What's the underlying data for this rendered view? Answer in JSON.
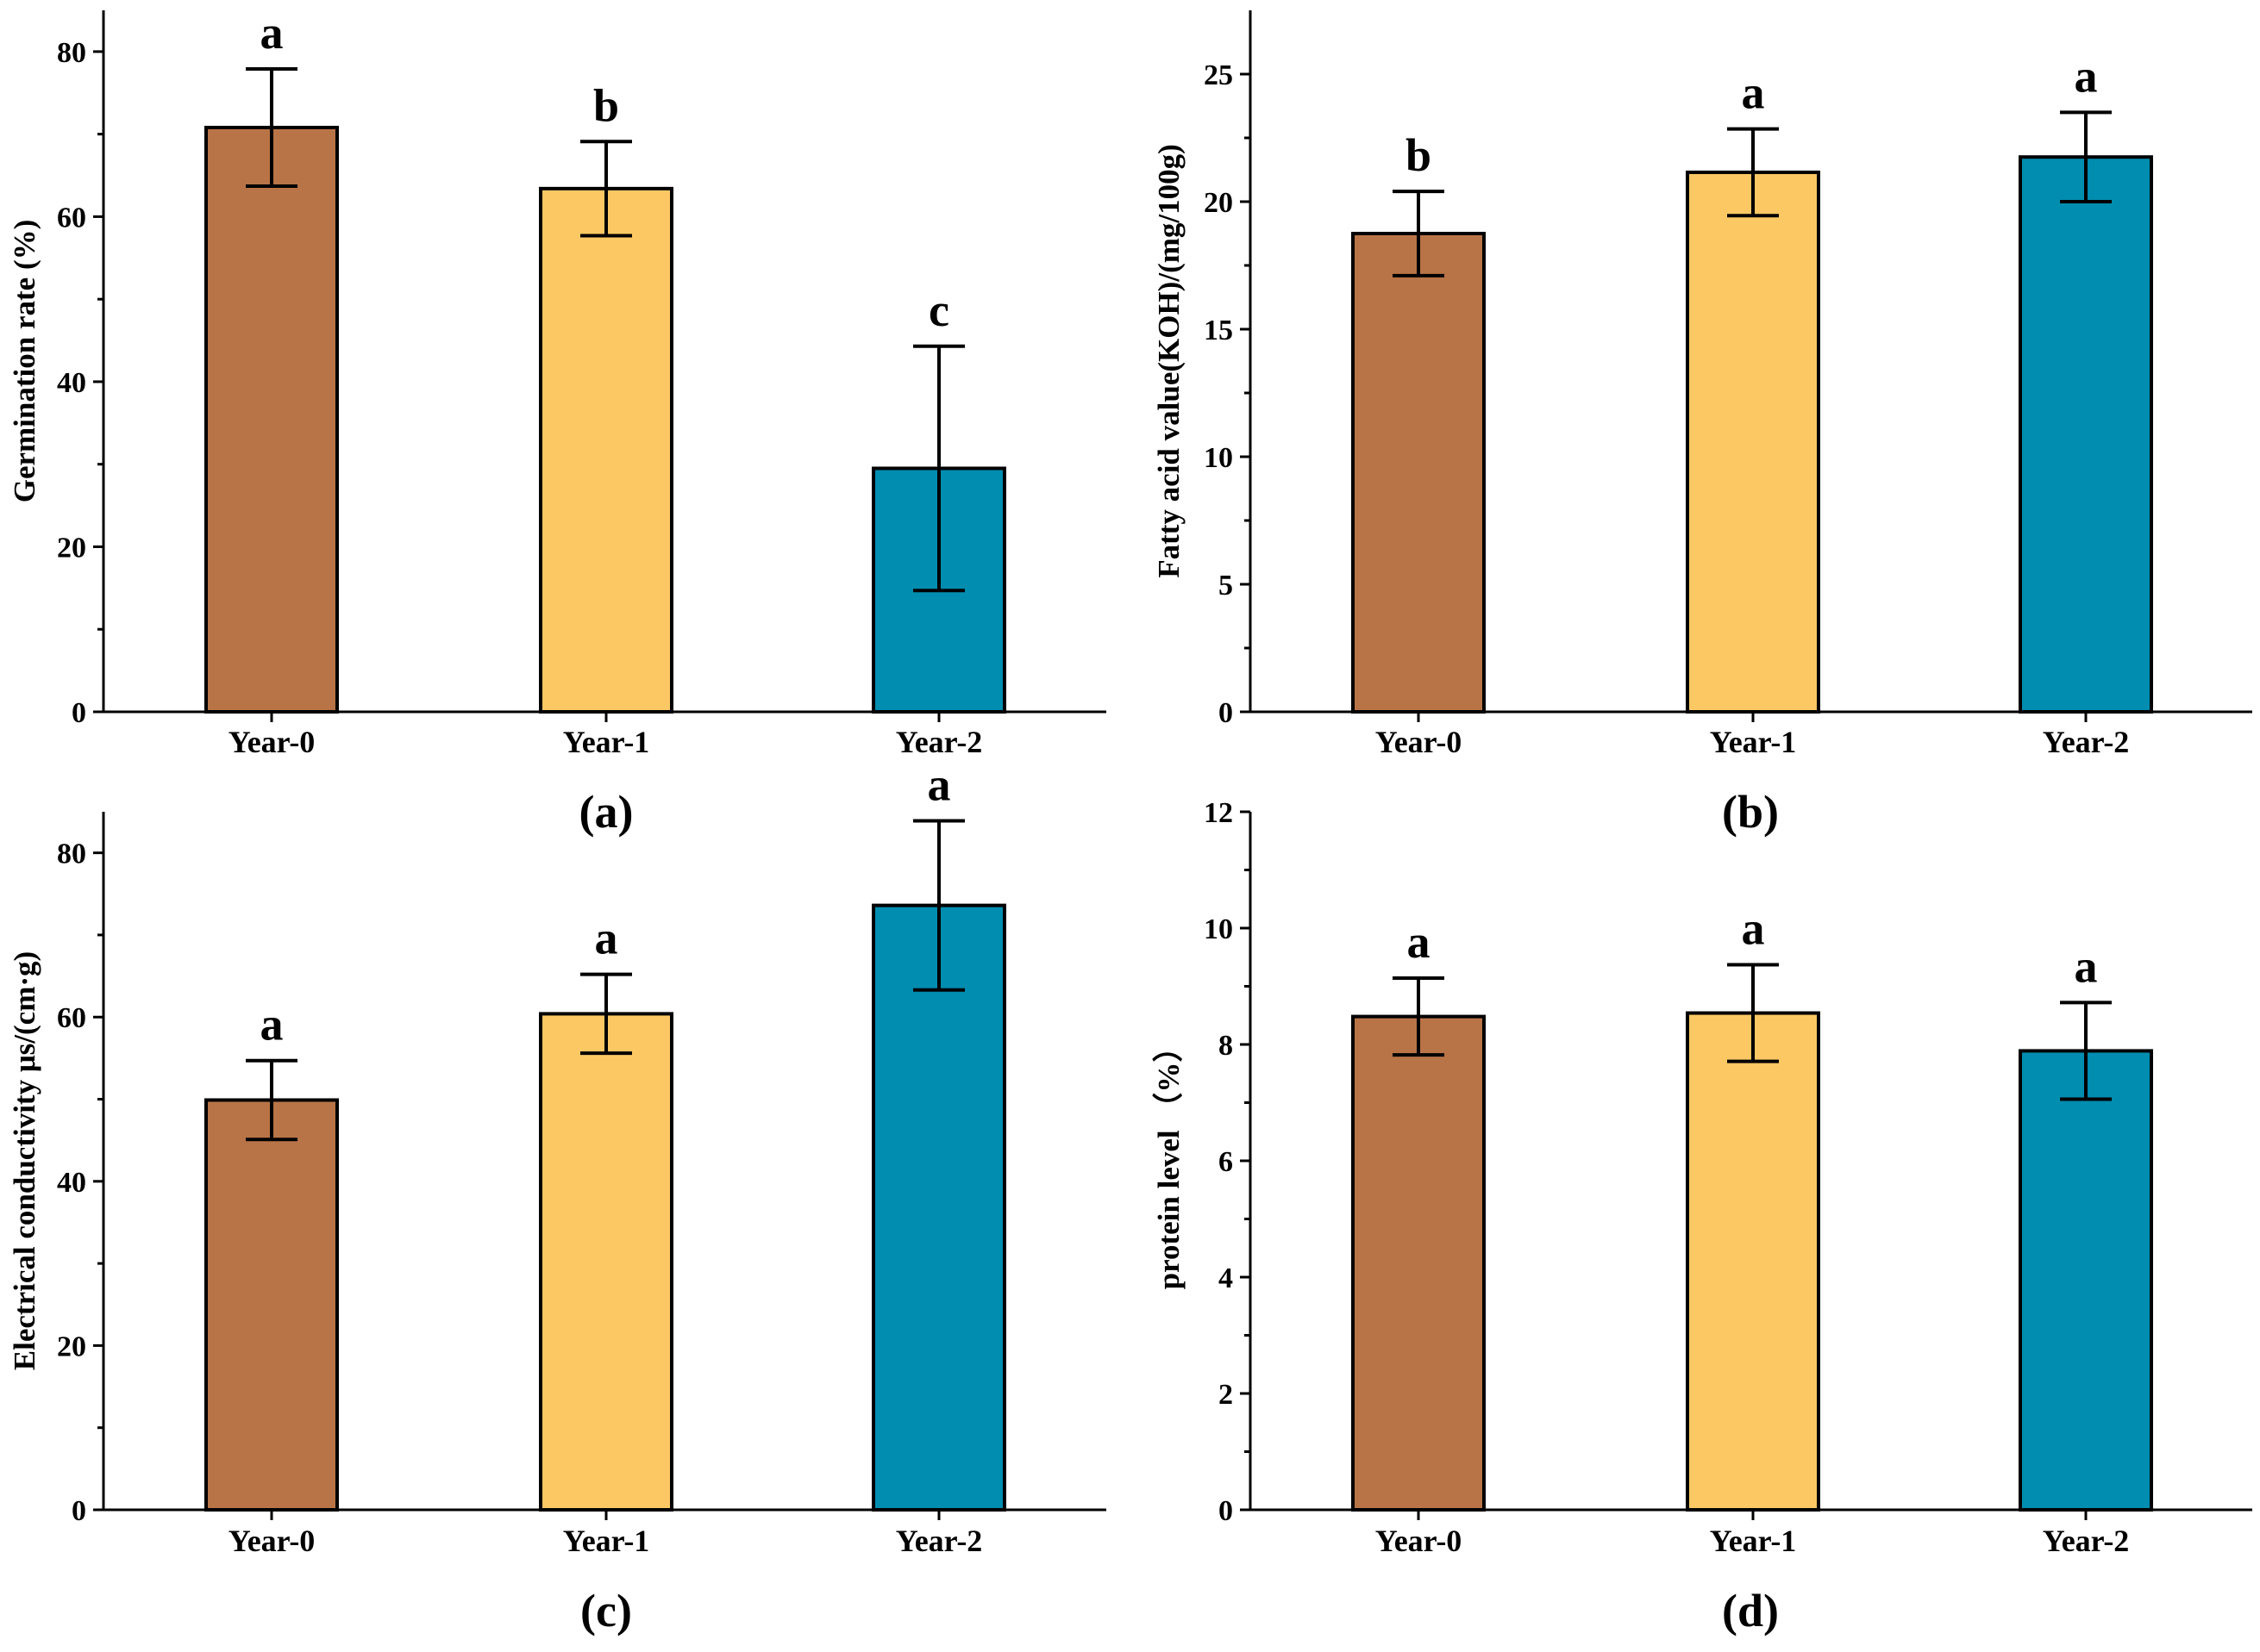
{
  "figure": {
    "colors": {
      "Year-0": "#b87447",
      "Year-1": "#fbc864",
      "Year-2": "#008db0",
      "axis": "#000000"
    }
  },
  "chart_data": [
    {
      "type": "bar",
      "caption": "(a)",
      "categories": [
        "Year-0",
        "Year-1",
        "Year-2"
      ],
      "values": [
        70.8,
        63.4,
        29.5
      ],
      "errors": [
        7.1,
        5.7,
        14.8
      ],
      "significance": [
        "a",
        "b",
        "c"
      ],
      "ylabel": "Germination rate (%)",
      "xlabel": "",
      "ylim": [
        0,
        85
      ],
      "yticks": [
        0,
        20,
        40,
        60,
        80
      ],
      "ytick_labels": [
        "0",
        "20",
        "40",
        "60",
        "80"
      ]
    },
    {
      "type": "bar",
      "caption": "(b)",
      "categories": [
        "Year-0",
        "Year-1",
        "Year-2"
      ],
      "values": [
        18.75,
        21.15,
        21.75
      ],
      "errors": [
        1.65,
        1.7,
        1.75
      ],
      "significance": [
        "b",
        "a",
        "a"
      ],
      "ylabel": "Fatty acid value(KOH)/(mg/100g)",
      "xlabel": "",
      "ylim": [
        0,
        27.5
      ],
      "yticks": [
        0,
        5,
        10,
        15,
        20,
        25
      ],
      "ytick_labels": [
        "0",
        "5",
        "10",
        "15",
        "20",
        "25"
      ]
    },
    {
      "type": "bar",
      "caption": "(c)",
      "categories": [
        "Year-0",
        "Year-1",
        "Year-2"
      ],
      "values": [
        49.9,
        60.4,
        73.6
      ],
      "errors": [
        4.8,
        4.8,
        10.3
      ],
      "significance": [
        "a",
        "a",
        "a"
      ],
      "ylabel": "Electrical conductivity μs/(cm·g)",
      "xlabel": "",
      "ylim": [
        0,
        85
      ],
      "yticks": [
        0,
        20,
        40,
        60,
        80
      ],
      "ytick_labels": [
        "0",
        "20",
        "40",
        "60",
        "80"
      ]
    },
    {
      "type": "bar",
      "caption": "(d)",
      "categories": [
        "Year-0",
        "Year-1",
        "Year-2"
      ],
      "values": [
        8.48,
        8.54,
        7.89
      ],
      "errors": [
        0.66,
        0.83,
        0.83
      ],
      "significance": [
        "a",
        "a",
        "a"
      ],
      "ylabel": "protein level （%）",
      "xlabel": "",
      "ylim": [
        0,
        12
      ],
      "yticks": [
        0,
        2,
        4,
        6,
        8,
        10,
        12
      ],
      "ytick_labels": [
        "0",
        "2",
        "4",
        "6",
        "8",
        "10",
        "12"
      ]
    }
  ]
}
